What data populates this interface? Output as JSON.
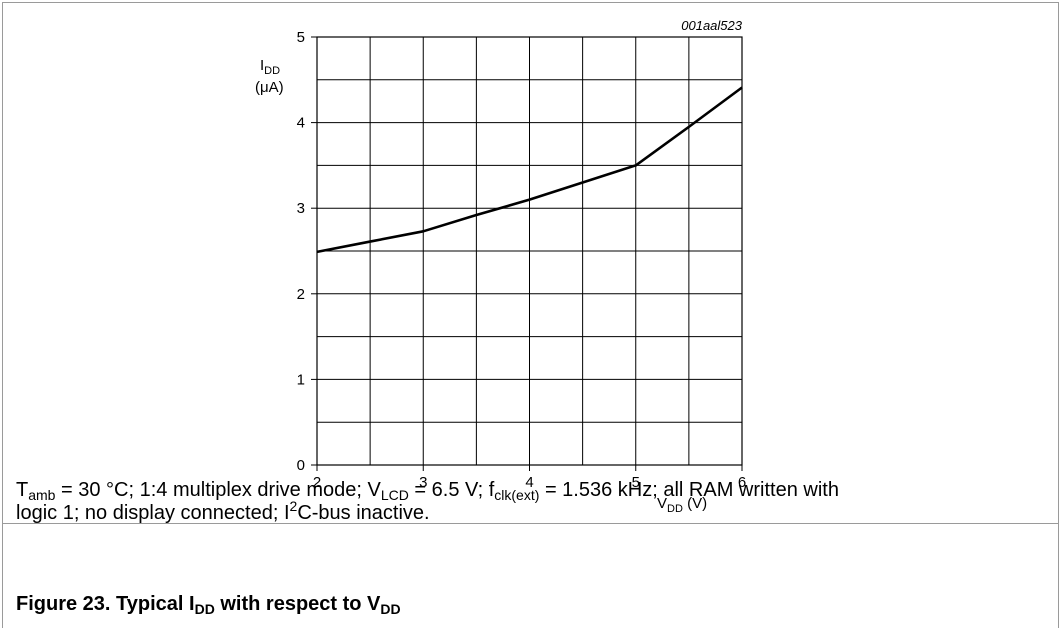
{
  "chart_data": {
    "type": "line",
    "figure_code": "001aal523",
    "ylabel": {
      "main": "I",
      "sub": "DD",
      "unit": "(μA)"
    },
    "xlabel": {
      "main": "V",
      "sub": "DD",
      "unit": "(V)"
    },
    "xlim": [
      2,
      6
    ],
    "ylim": [
      0,
      5
    ],
    "x_ticks": [
      2,
      3,
      4,
      5,
      6
    ],
    "y_ticks": [
      0,
      1,
      2,
      3,
      4,
      5
    ],
    "grid": {
      "x_step": 0.5,
      "y_step": 0.5
    },
    "series": [
      {
        "x": [
          2,
          2.5,
          3,
          3.5,
          4,
          4.5,
          5,
          5.5,
          6
        ],
        "y": [
          2.49,
          2.61,
          2.73,
          2.92,
          3.1,
          3.3,
          3.5,
          3.95,
          4.41
        ]
      }
    ],
    "colors": {
      "line": "#000000",
      "grid": "#000000"
    }
  },
  "caption": {
    "conditions": [
      {
        "t": "T"
      },
      {
        "sub": "amb"
      },
      {
        "t": " = 30 °C; 1:4 multiplex drive mode; V"
      },
      {
        "sub": "LCD"
      },
      {
        "t": " = 6.5 V; f"
      },
      {
        "sub": "clk(ext)"
      },
      {
        "t": " = 1.536 kHz; all RAM written with"
      }
    ],
    "conditions_line2": [
      {
        "t": "logic 1; no display connected; I"
      },
      {
        "sup": "2"
      },
      {
        "t": "C-bus inactive."
      }
    ],
    "figure_title": [
      {
        "t": "Figure 23.  Typical I"
      },
      {
        "sub": "DD"
      },
      {
        "t": " with respect to V"
      },
      {
        "sub": "DD"
      }
    ]
  }
}
